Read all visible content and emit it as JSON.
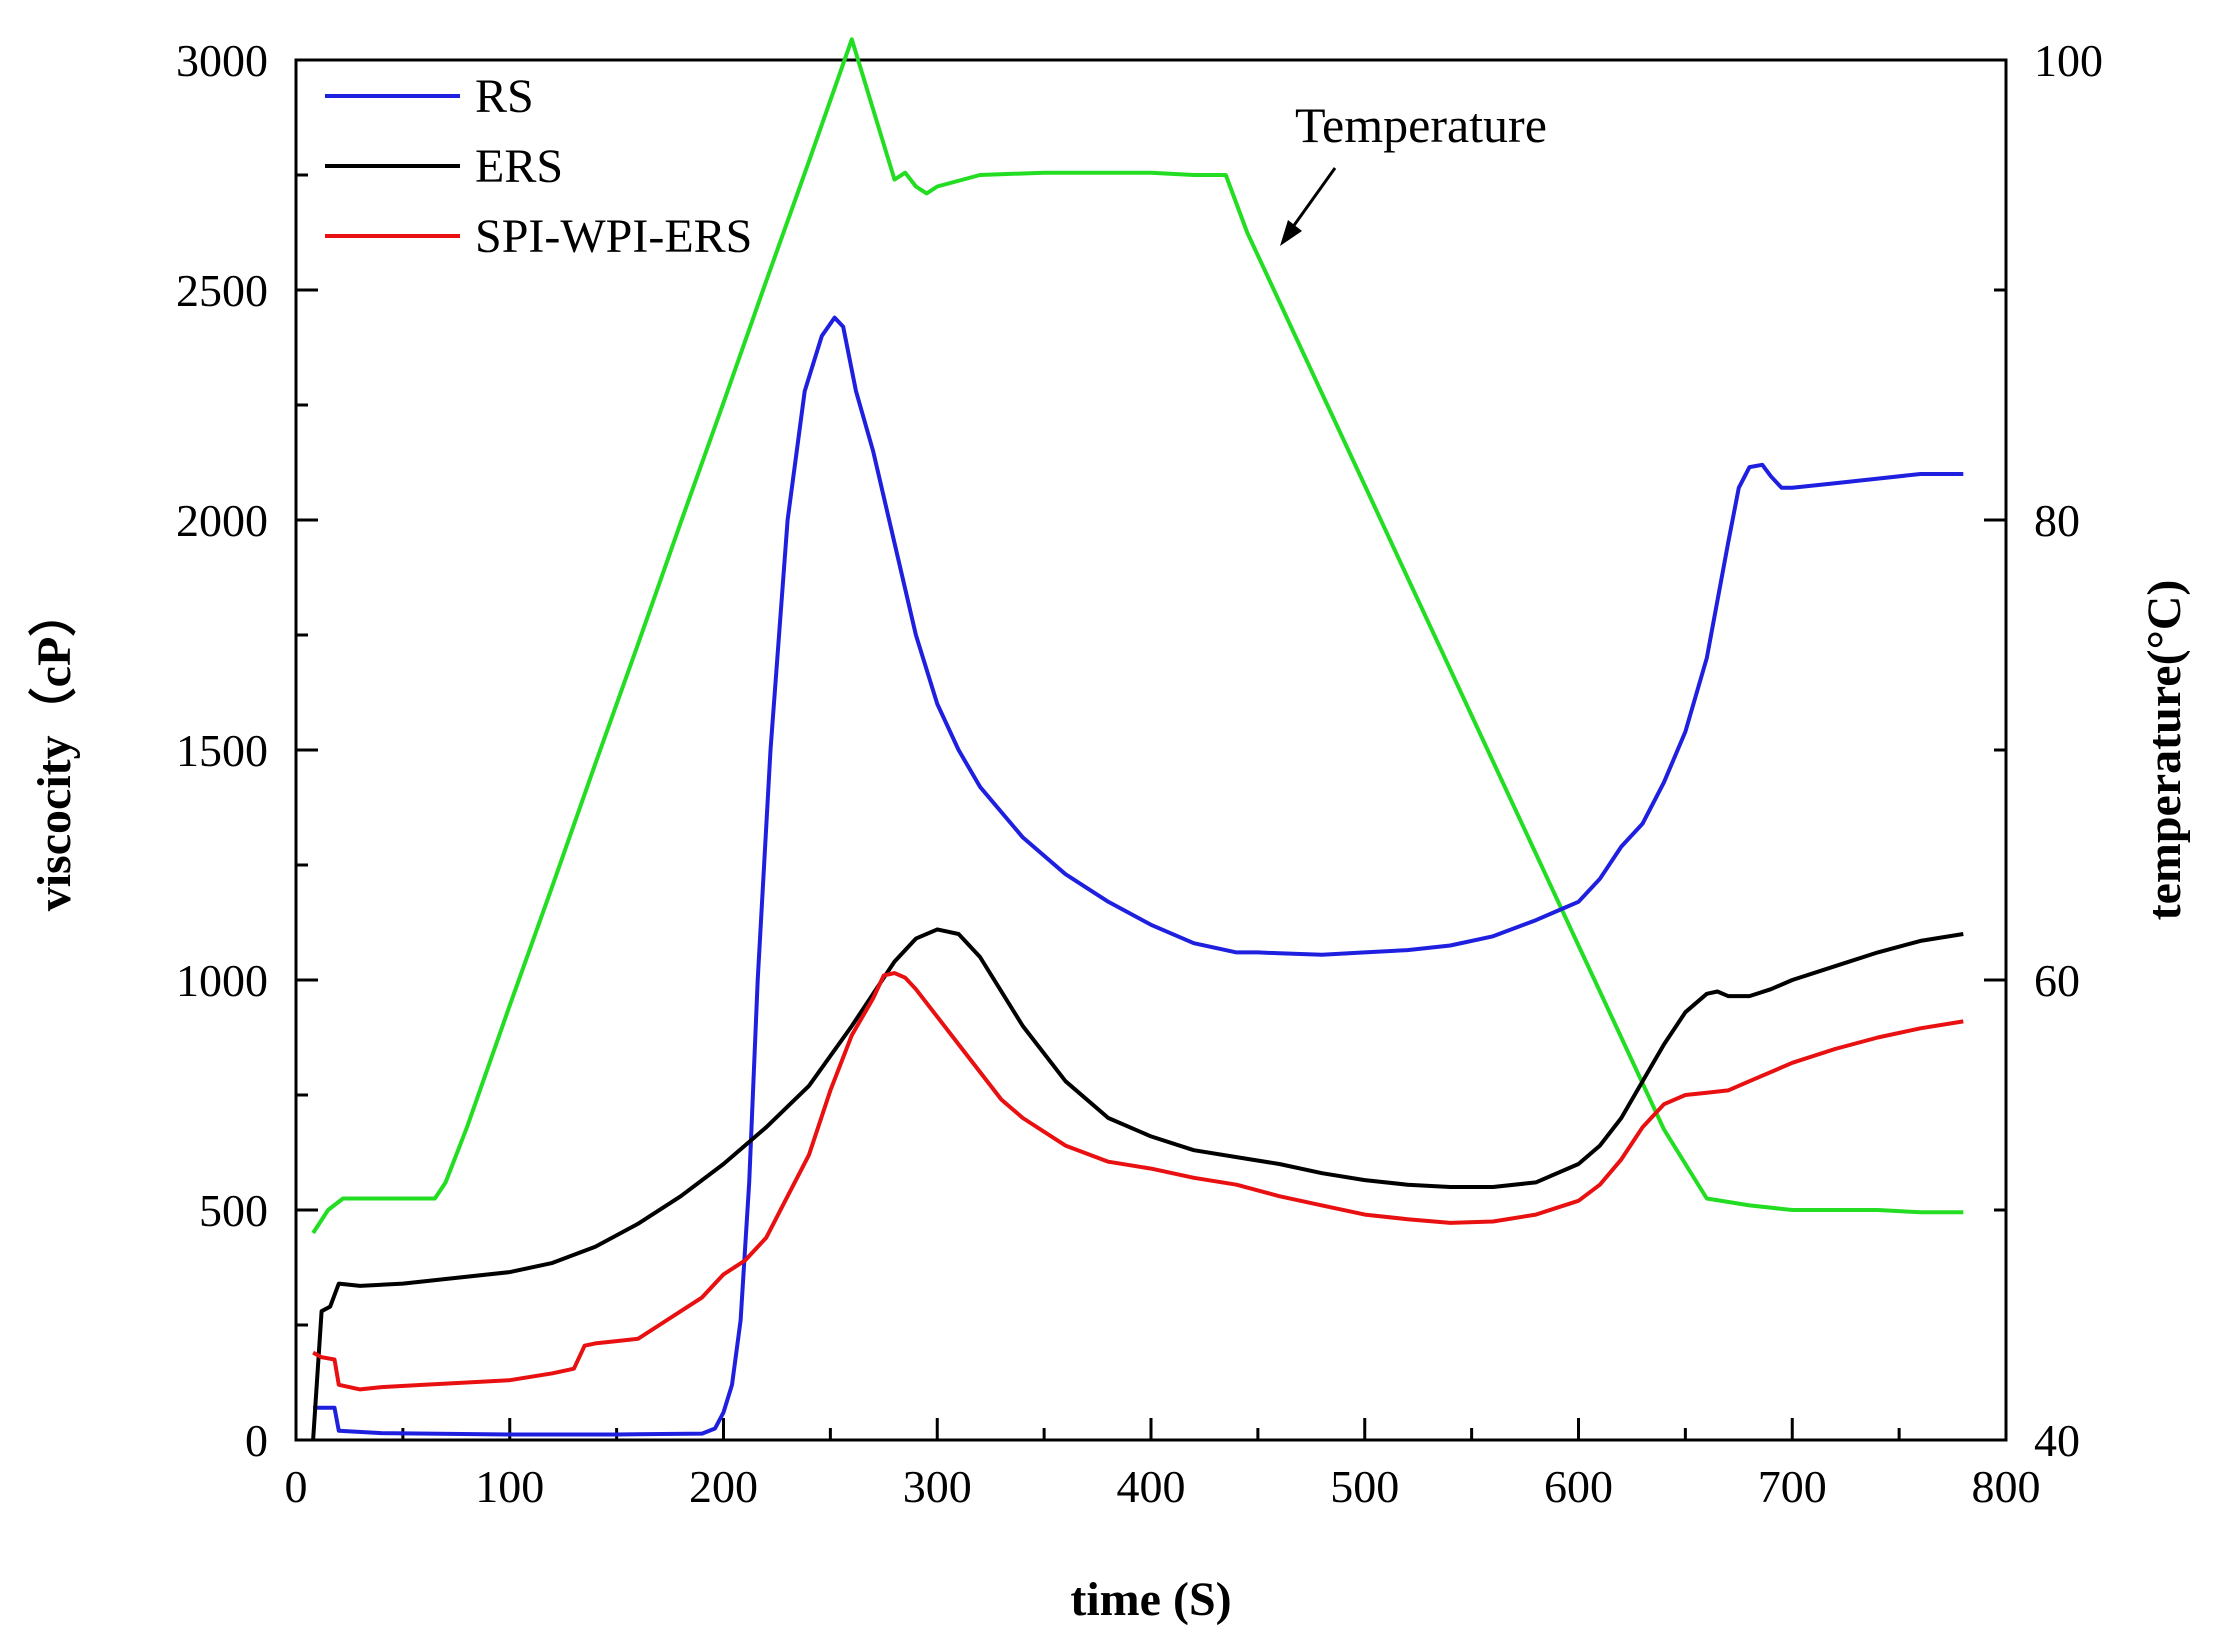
{
  "chart_data": {
    "type": "line",
    "title": "",
    "xlabel": "time (S)",
    "ylabel_left": "viscocity（cP）",
    "ylabel_right": "temperature(°C)",
    "xlim": [
      0,
      800
    ],
    "ylim_left": [
      0,
      3000
    ],
    "ylim_right": [
      40,
      100
    ],
    "x_ticks": [
      0,
      100,
      200,
      300,
      400,
      500,
      600,
      700,
      800
    ],
    "y_left_ticks": [
      0,
      500,
      1000,
      1500,
      2000,
      2500,
      3000
    ],
    "y_right_ticks": [
      40,
      60,
      80,
      100
    ],
    "grid": false,
    "legend_position": "top-left",
    "annotation": {
      "text": "Temperature",
      "target_series": "Temperature"
    },
    "series": [
      {
        "name": "RS",
        "axis": "left",
        "color": "#1f1fe0",
        "x": [
          8,
          18,
          20,
          40,
          100,
          150,
          190,
          196,
          200,
          204,
          208,
          212,
          216,
          222,
          230,
          238,
          246,
          252,
          256,
          262,
          270,
          280,
          290,
          300,
          310,
          320,
          340,
          360,
          380,
          400,
          420,
          440,
          450,
          460,
          480,
          500,
          520,
          540,
          560,
          580,
          590,
          600,
          610,
          620,
          630,
          640,
          650,
          660,
          670,
          675,
          680,
          686,
          690,
          695,
          700,
          720,
          740,
          760,
          780
        ],
        "y": [
          70,
          70,
          20,
          15,
          12,
          12,
          14,
          25,
          60,
          120,
          260,
          560,
          1000,
          1500,
          2000,
          2280,
          2400,
          2440,
          2420,
          2280,
          2150,
          1950,
          1750,
          1600,
          1500,
          1420,
          1310,
          1230,
          1170,
          1120,
          1080,
          1060,
          1060,
          1058,
          1055,
          1060,
          1065,
          1075,
          1095,
          1130,
          1150,
          1170,
          1220,
          1290,
          1340,
          1430,
          1540,
          1700,
          1950,
          2070,
          2115,
          2120,
          2095,
          2070,
          2070,
          2080,
          2090,
          2100,
          2100
        ]
      },
      {
        "name": "ERS",
        "axis": "left",
        "color": "#000000",
        "x": [
          8,
          12,
          16,
          20,
          30,
          50,
          70,
          100,
          120,
          140,
          160,
          180,
          200,
          220,
          240,
          260,
          270,
          280,
          290,
          300,
          310,
          320,
          340,
          360,
          380,
          400,
          420,
          440,
          460,
          480,
          500,
          520,
          540,
          560,
          580,
          600,
          610,
          620,
          630,
          640,
          650,
          660,
          665,
          670,
          680,
          690,
          700,
          720,
          740,
          760,
          780
        ],
        "y": [
          0,
          280,
          290,
          340,
          335,
          340,
          350,
          365,
          385,
          420,
          470,
          530,
          600,
          680,
          770,
          900,
          970,
          1040,
          1090,
          1110,
          1100,
          1050,
          900,
          780,
          700,
          660,
          630,
          615,
          600,
          580,
          565,
          555,
          550,
          550,
          560,
          600,
          640,
          700,
          780,
          860,
          930,
          970,
          975,
          965,
          965,
          980,
          1000,
          1030,
          1060,
          1085,
          1100
        ]
      },
      {
        "name": "SPI-WPI-ERS",
        "axis": "left",
        "color": "#e81010",
        "x": [
          8,
          12,
          18,
          20,
          30,
          40,
          60,
          80,
          100,
          120,
          130,
          135,
          140,
          150,
          160,
          170,
          180,
          190,
          200,
          210,
          220,
          230,
          240,
          250,
          260,
          270,
          275,
          280,
          285,
          290,
          300,
          310,
          320,
          330,
          340,
          360,
          380,
          400,
          420,
          440,
          460,
          480,
          500,
          520,
          540,
          560,
          580,
          590,
          600,
          610,
          620,
          630,
          640,
          650,
          660,
          670,
          680,
          700,
          720,
          740,
          760,
          780
        ],
        "y": [
          190,
          180,
          175,
          120,
          110,
          115,
          120,
          125,
          130,
          145,
          155,
          205,
          210,
          215,
          220,
          250,
          280,
          310,
          360,
          390,
          440,
          530,
          620,
          760,
          880,
          960,
          1010,
          1015,
          1005,
          980,
          920,
          860,
          800,
          740,
          700,
          640,
          605,
          590,
          570,
          555,
          530,
          510,
          490,
          480,
          472,
          475,
          490,
          505,
          520,
          555,
          610,
          680,
          730,
          750,
          755,
          760,
          780,
          820,
          850,
          875,
          895,
          910
        ]
      },
      {
        "name": "Temperature",
        "axis": "right",
        "color": "#22dd22",
        "x": [
          8,
          15,
          22,
          30,
          50,
          65,
          70,
          80,
          100,
          120,
          140,
          160,
          180,
          200,
          220,
          240,
          260,
          280,
          285,
          290,
          295,
          300,
          320,
          350,
          380,
          400,
          420,
          435,
          445,
          460,
          480,
          500,
          520,
          540,
          560,
          580,
          600,
          620,
          640,
          660,
          680,
          700,
          720,
          740,
          760,
          780
        ],
        "y": [
          49,
          50,
          50.5,
          50.5,
          50.5,
          50.5,
          51.2,
          53.6,
          58.9,
          64.1,
          69.4,
          74.6,
          79.9,
          85.1,
          90.4,
          95.6,
          100.9,
          94.8,
          95.1,
          94.5,
          94.2,
          94.5,
          95,
          95.1,
          95.1,
          95.1,
          95,
          95,
          92.5,
          89.5,
          85.5,
          81.5,
          77.5,
          73.5,
          69.5,
          65.5,
          61.5,
          57.5,
          53.5,
          50.5,
          50.2,
          50,
          50,
          50,
          49.9,
          49.9
        ]
      }
    ]
  }
}
